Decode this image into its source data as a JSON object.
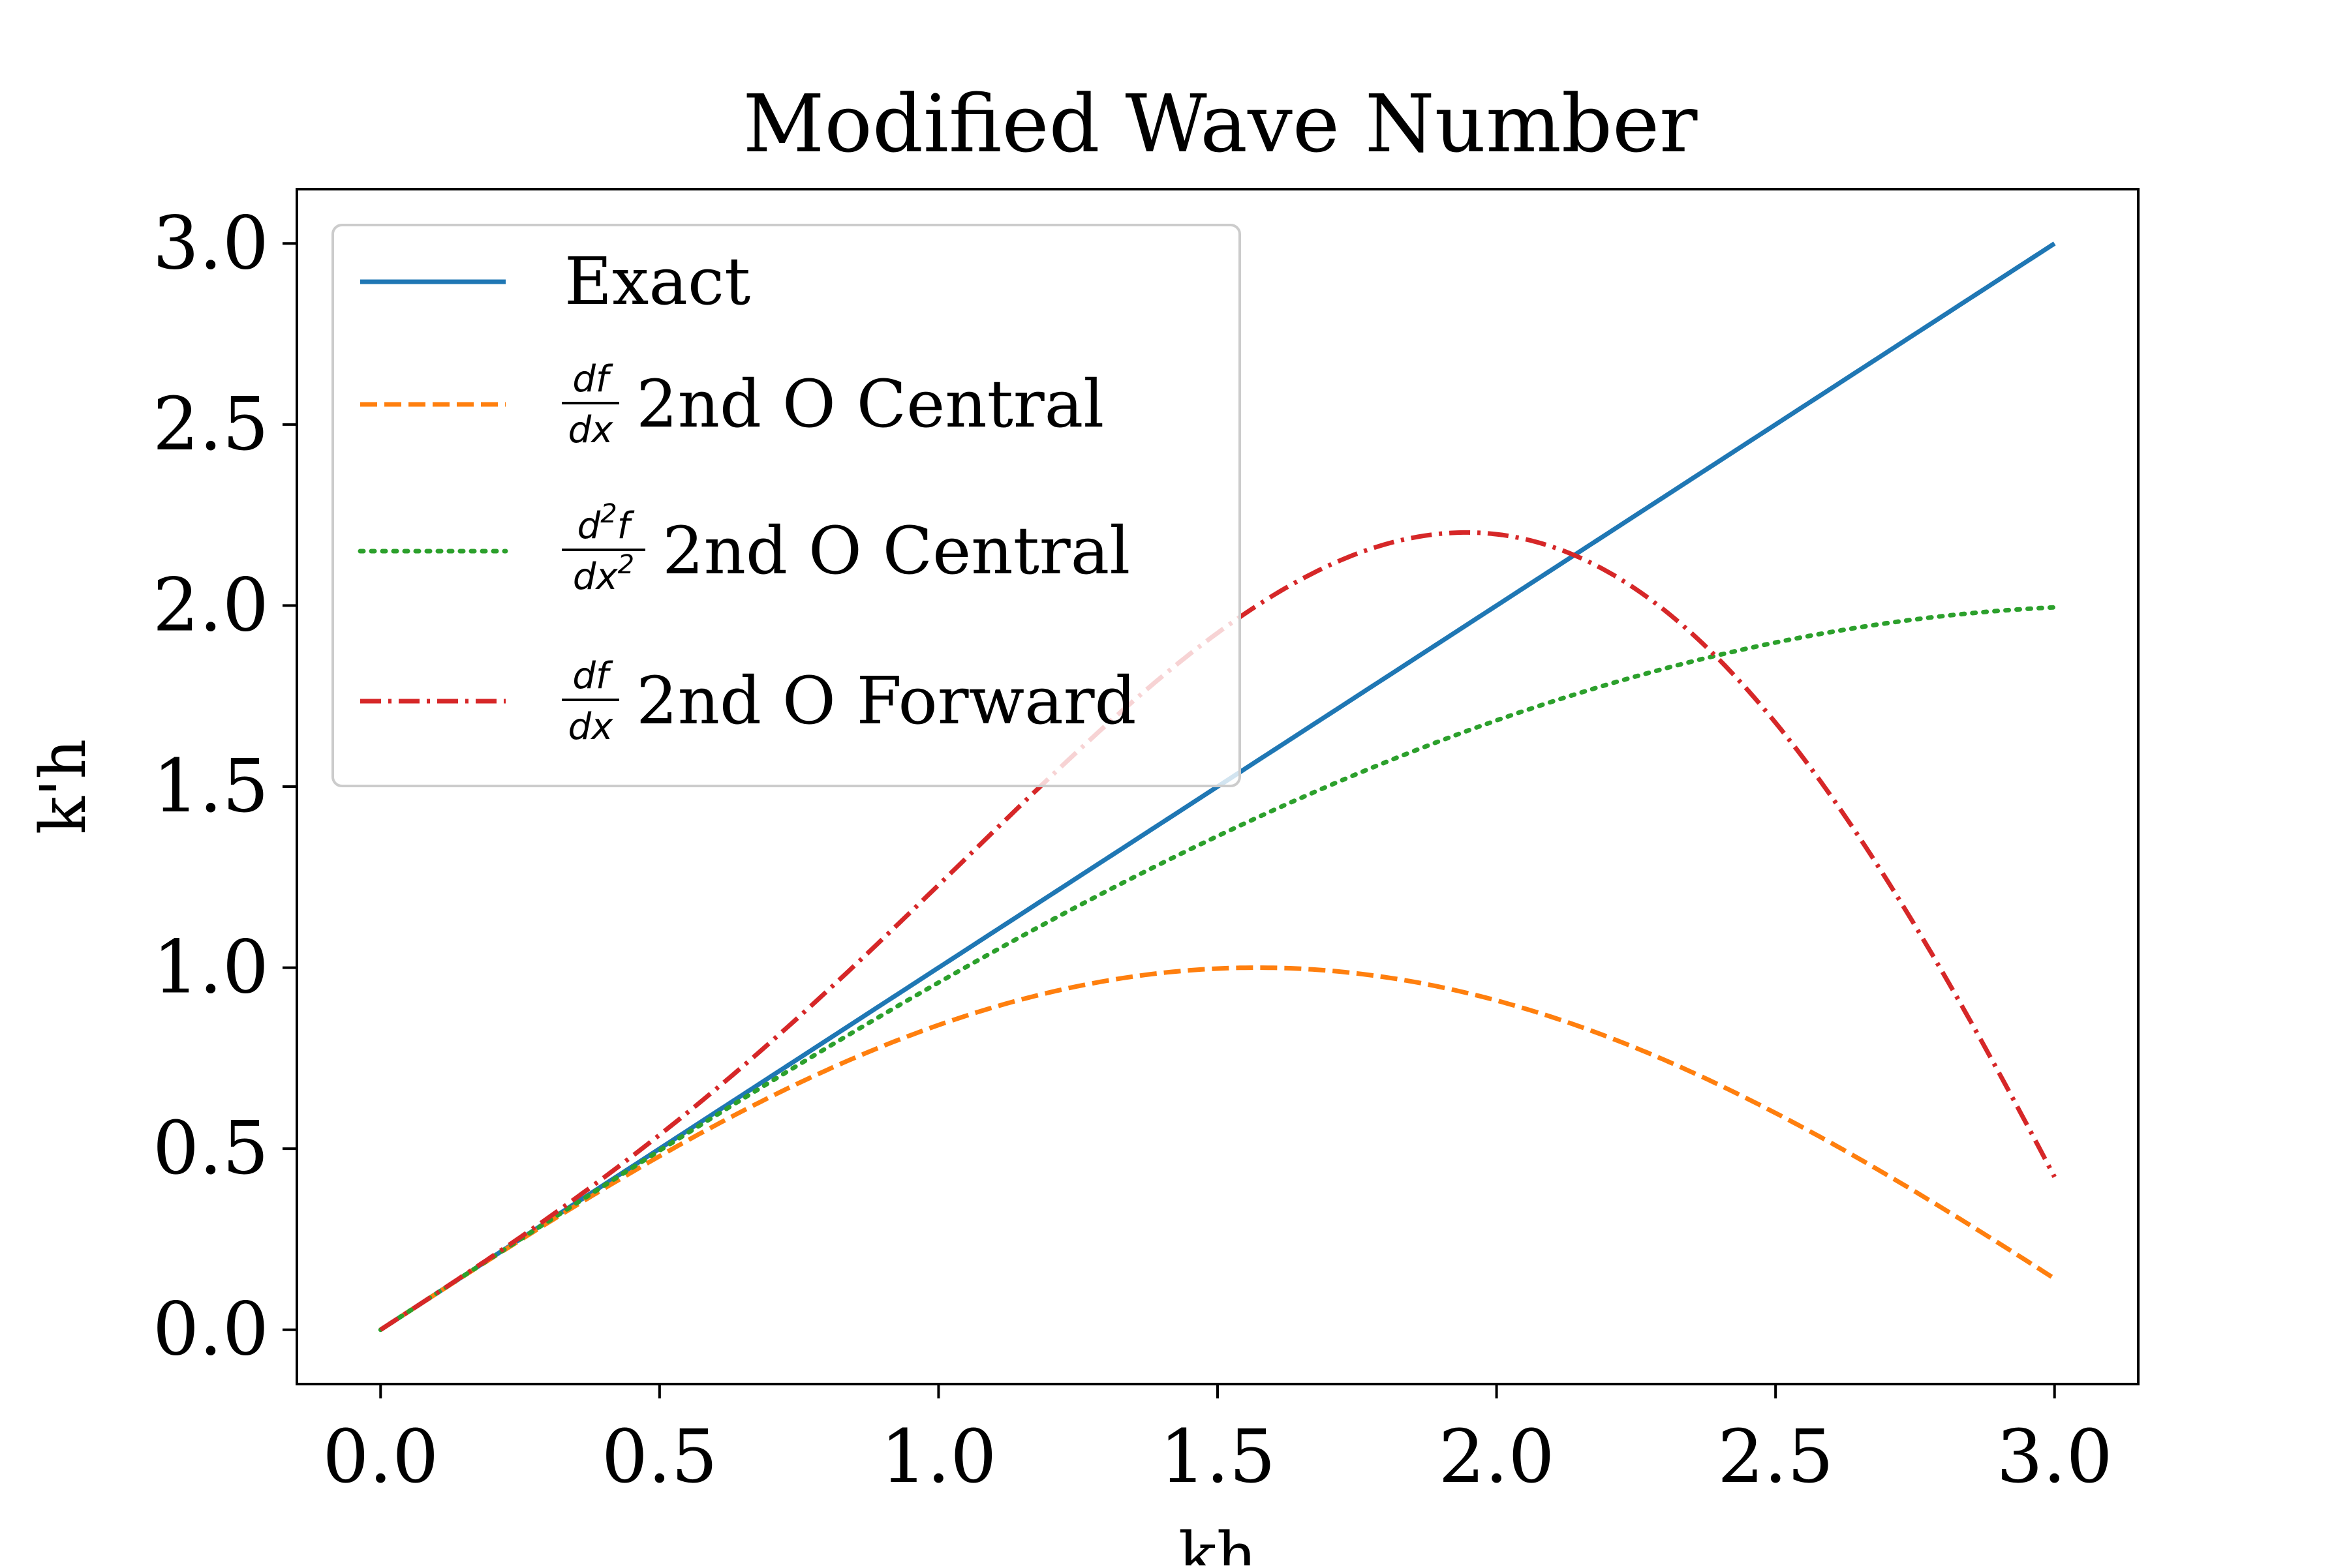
{
  "chart_data": {
    "type": "line",
    "title": "Modified Wave Number",
    "xlabel": "kh",
    "ylabel": "k'h",
    "xlim": [
      -0.15,
      3.15
    ],
    "ylim": [
      -0.15,
      3.15
    ],
    "xticks": [
      "0.0",
      "0.5",
      "1.0",
      "1.5",
      "2.0",
      "2.5",
      "3.0"
    ],
    "yticks": [
      "0.0",
      "0.5",
      "1.0",
      "1.5",
      "2.0",
      "2.5",
      "3.0"
    ],
    "grid": false,
    "legend_position": "top-left",
    "x_range": [
      0,
      3
    ],
    "series": [
      {
        "name": "Exact",
        "formula": "kh",
        "color": "#1f77b4",
        "style": "solid",
        "legend": {
          "numerator": "",
          "denominator": "",
          "suffix": "Exact"
        },
        "x": [
          0,
          0.5,
          1.0,
          1.5,
          2.0,
          2.5,
          3.0
        ],
        "values": [
          0,
          0.5,
          1.0,
          1.5,
          2.0,
          2.5,
          3.0
        ]
      },
      {
        "name": "df/dx 2nd O Central",
        "formula": "sin(kh)",
        "color": "#ff7f0e",
        "style": "dashed",
        "legend": {
          "numerator": "df",
          "denominator": "dx",
          "suffix": "2nd O Central"
        },
        "x": [
          0,
          0.5,
          1.0,
          1.5,
          2.0,
          2.5,
          3.0
        ],
        "values": [
          0,
          0.479,
          0.841,
          0.997,
          0.909,
          0.598,
          0.141
        ]
      },
      {
        "name": "d2f/dx2 2nd O Central",
        "formula": "2*sin(kh/2)",
        "color": "#2ca02c",
        "style": "dotted",
        "legend": {
          "numerator": "d",
          "numerator_sup": "2",
          "numerator_tail": "f",
          "denominator": "dx",
          "denominator_sup": "2",
          "suffix": "2nd O Central"
        },
        "x": [
          0,
          0.5,
          1.0,
          1.5,
          2.0,
          2.5,
          3.0
        ],
        "values": [
          0,
          0.495,
          0.959,
          1.363,
          1.683,
          1.898,
          1.995
        ]
      },
      {
        "name": "df/dx 2nd O Forward",
        "formula": "2*sin(kh) - sin(2kh)/2",
        "color": "#d62728",
        "style": "dashdot",
        "legend": {
          "numerator": "df",
          "denominator": "dx",
          "suffix": "2nd O Forward"
        },
        "x": [
          0,
          0.5,
          1.0,
          1.5,
          2.0,
          2.5,
          3.0
        ],
        "values": [
          0,
          0.538,
          1.228,
          1.924,
          2.197,
          1.675,
          0.422
        ]
      }
    ]
  }
}
